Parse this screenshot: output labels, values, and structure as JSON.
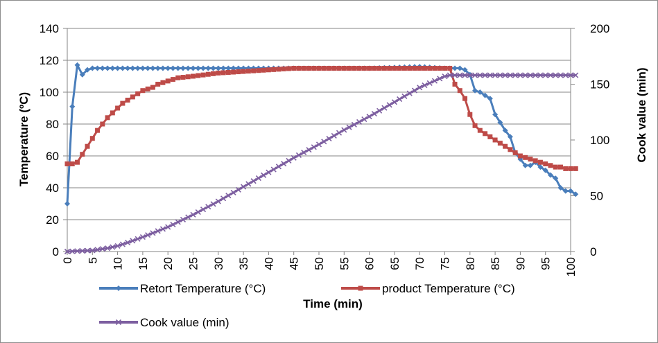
{
  "chart_data": {
    "type": "line",
    "xlabel": "Time (min)",
    "ylabel": "Temperature (ºC)",
    "y2label": "Cook value  (min)",
    "xlim": [
      0,
      100
    ],
    "ylim": [
      0,
      140
    ],
    "y2lim": [
      0,
      200
    ],
    "x_ticks": [
      0,
      5,
      10,
      15,
      20,
      25,
      30,
      35,
      40,
      45,
      50,
      55,
      60,
      65,
      70,
      75,
      80,
      85,
      90,
      95,
      100
    ],
    "y_ticks": [
      0,
      20,
      40,
      60,
      80,
      100,
      120,
      140
    ],
    "y2_ticks": [
      0,
      50,
      100,
      150,
      200
    ],
    "x_tick_labels": [
      "0",
      "5",
      "10",
      "15",
      "20",
      "25",
      "30",
      "35",
      "40",
      "45",
      "50",
      "55",
      "60",
      "65",
      "70",
      "75",
      "80",
      "85",
      "90",
      "95",
      "100"
    ],
    "y_tick_labels": [
      "0",
      "20",
      "40",
      "60",
      "80",
      "100",
      "120",
      "140"
    ],
    "y2_tick_labels": [
      "0",
      "50",
      "100",
      "150",
      "200"
    ],
    "grid": "horizontal",
    "legend_position": "bottom",
    "series": [
      {
        "name": "Retort  Temperature (°C)",
        "axis": "left",
        "color": "#4a7ebb",
        "marker": "diamond",
        "points": [
          [
            0,
            30
          ],
          [
            1,
            91
          ],
          [
            2,
            117
          ],
          [
            3,
            111
          ],
          [
            4,
            114
          ],
          [
            5,
            115
          ],
          [
            6,
            115
          ],
          [
            8,
            115
          ],
          [
            10,
            115
          ],
          [
            15,
            115
          ],
          [
            20,
            115
          ],
          [
            30,
            115
          ],
          [
            40,
            115
          ],
          [
            50,
            115
          ],
          [
            60,
            115
          ],
          [
            70,
            116
          ],
          [
            75,
            115
          ],
          [
            78,
            115
          ],
          [
            79,
            114
          ],
          [
            80,
            111
          ],
          [
            81,
            101
          ],
          [
            82,
            100
          ],
          [
            83,
            98
          ],
          [
            84,
            96
          ],
          [
            85,
            86
          ],
          [
            86,
            81
          ],
          [
            87,
            76
          ],
          [
            88,
            72
          ],
          [
            89,
            62
          ],
          [
            90,
            58
          ],
          [
            91,
            54
          ],
          [
            92,
            54
          ],
          [
            93,
            56
          ],
          [
            94,
            53
          ],
          [
            95,
            51
          ],
          [
            96,
            48
          ],
          [
            97,
            46
          ],
          [
            98,
            40
          ],
          [
            99,
            38
          ],
          [
            100,
            38
          ],
          [
            101,
            36
          ]
        ]
      },
      {
        "name": "product  Temperature (°C)",
        "axis": "left",
        "color": "#be4b48",
        "marker": "square",
        "points": [
          [
            0,
            55
          ],
          [
            1,
            55
          ],
          [
            2,
            56
          ],
          [
            3,
            61
          ],
          [
            4,
            66
          ],
          [
            5,
            71
          ],
          [
            6,
            76
          ],
          [
            7,
            80
          ],
          [
            8,
            84
          ],
          [
            9,
            87
          ],
          [
            10,
            90
          ],
          [
            11,
            93
          ],
          [
            12,
            95
          ],
          [
            13,
            97
          ],
          [
            14,
            99
          ],
          [
            15,
            101
          ],
          [
            16,
            102
          ],
          [
            17,
            103
          ],
          [
            18,
            105
          ],
          [
            19,
            106
          ],
          [
            20,
            107
          ],
          [
            22,
            109
          ],
          [
            25,
            110
          ],
          [
            30,
            112
          ],
          [
            35,
            113
          ],
          [
            40,
            114
          ],
          [
            45,
            115
          ],
          [
            50,
            115
          ],
          [
            60,
            115
          ],
          [
            70,
            115
          ],
          [
            76,
            115
          ],
          [
            77,
            105
          ],
          [
            78,
            101
          ],
          [
            79,
            96
          ],
          [
            80,
            86
          ],
          [
            81,
            79
          ],
          [
            82,
            76
          ],
          [
            83,
            74
          ],
          [
            84,
            72
          ],
          [
            85,
            70
          ],
          [
            86,
            68
          ],
          [
            87,
            66
          ],
          [
            88,
            64
          ],
          [
            89,
            62
          ],
          [
            90,
            60
          ],
          [
            91,
            59
          ],
          [
            92,
            58
          ],
          [
            93,
            57
          ],
          [
            94,
            56
          ],
          [
            95,
            55
          ],
          [
            96,
            54
          ],
          [
            97,
            53
          ],
          [
            98,
            53
          ],
          [
            99,
            52
          ],
          [
            100,
            52
          ],
          [
            101,
            52
          ]
        ]
      },
      {
        "name": "Cook value (min)",
        "axis": "right",
        "color": "#7d5fa0",
        "marker": "x",
        "points": [
          [
            0,
            0
          ],
          [
            5,
            1
          ],
          [
            8,
            3
          ],
          [
            10,
            5
          ],
          [
            12,
            8
          ],
          [
            15,
            13
          ],
          [
            20,
            22
          ],
          [
            25,
            33
          ],
          [
            30,
            45
          ],
          [
            35,
            58
          ],
          [
            40,
            71
          ],
          [
            45,
            84
          ],
          [
            50,
            96
          ],
          [
            55,
            109
          ],
          [
            60,
            121
          ],
          [
            65,
            134
          ],
          [
            70,
            147
          ],
          [
            72,
            151
          ],
          [
            74,
            155
          ],
          [
            75,
            157
          ],
          [
            76,
            158
          ],
          [
            77,
            158
          ],
          [
            78,
            158
          ],
          [
            80,
            158
          ],
          [
            85,
            158
          ],
          [
            90,
            158
          ],
          [
            95,
            158
          ],
          [
            100,
            158
          ],
          [
            101,
            158
          ]
        ]
      }
    ]
  }
}
